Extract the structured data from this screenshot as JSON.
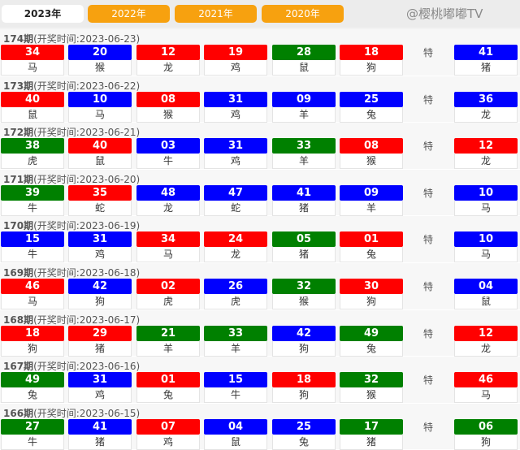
{
  "tabs": [
    "2023年",
    "2022年",
    "2021年",
    "2020年"
  ],
  "active_tab": 0,
  "special_label": "特",
  "colors": {
    "r": "#ff0000",
    "b": "#0000ff",
    "g": "#008000"
  },
  "watermark": "@樱桃嘟嘟TV",
  "draws": [
    {
      "issue": "174期",
      "time": "(开奖时间:2023-06-23)",
      "balls": [
        [
          "34",
          "r",
          "马"
        ],
        [
          "20",
          "b",
          "猴"
        ],
        [
          "12",
          "r",
          "龙"
        ],
        [
          "19",
          "r",
          "鸡"
        ],
        [
          "28",
          "g",
          "鼠"
        ],
        [
          "18",
          "r",
          "狗"
        ]
      ],
      "special": [
        "41",
        "b",
        "猪"
      ]
    },
    {
      "issue": "173期",
      "time": "(开奖时间:2023-06-22)",
      "balls": [
        [
          "40",
          "r",
          "鼠"
        ],
        [
          "10",
          "b",
          "马"
        ],
        [
          "08",
          "r",
          "猴"
        ],
        [
          "31",
          "b",
          "鸡"
        ],
        [
          "09",
          "b",
          "羊"
        ],
        [
          "25",
          "b",
          "兔"
        ]
      ],
      "special": [
        "36",
        "b",
        "龙"
      ]
    },
    {
      "issue": "172期",
      "time": "(开奖时间:2023-06-21)",
      "balls": [
        [
          "38",
          "g",
          "虎"
        ],
        [
          "40",
          "r",
          "鼠"
        ],
        [
          "03",
          "b",
          "牛"
        ],
        [
          "31",
          "b",
          "鸡"
        ],
        [
          "33",
          "g",
          "羊"
        ],
        [
          "08",
          "r",
          "猴"
        ]
      ],
      "special": [
        "12",
        "r",
        "龙"
      ]
    },
    {
      "issue": "171期",
      "time": "(开奖时间:2023-06-20)",
      "balls": [
        [
          "39",
          "g",
          "牛"
        ],
        [
          "35",
          "r",
          "蛇"
        ],
        [
          "48",
          "b",
          "龙"
        ],
        [
          "47",
          "b",
          "蛇"
        ],
        [
          "41",
          "b",
          "猪"
        ],
        [
          "09",
          "b",
          "羊"
        ]
      ],
      "special": [
        "10",
        "b",
        "马"
      ]
    },
    {
      "issue": "170期",
      "time": "(开奖时间:2023-06-19)",
      "balls": [
        [
          "15",
          "b",
          "牛"
        ],
        [
          "31",
          "b",
          "鸡"
        ],
        [
          "34",
          "r",
          "马"
        ],
        [
          "24",
          "r",
          "龙"
        ],
        [
          "05",
          "g",
          "猪"
        ],
        [
          "01",
          "r",
          "兔"
        ]
      ],
      "special": [
        "10",
        "b",
        "马"
      ]
    },
    {
      "issue": "169期",
      "time": "(开奖时间:2023-06-18)",
      "balls": [
        [
          "46",
          "r",
          "马"
        ],
        [
          "42",
          "b",
          "狗"
        ],
        [
          "02",
          "r",
          "虎"
        ],
        [
          "26",
          "b",
          "虎"
        ],
        [
          "32",
          "g",
          "猴"
        ],
        [
          "30",
          "r",
          "狗"
        ]
      ],
      "special": [
        "04",
        "b",
        "鼠"
      ]
    },
    {
      "issue": "168期",
      "time": "(开奖时间:2023-06-17)",
      "balls": [
        [
          "18",
          "r",
          "狗"
        ],
        [
          "29",
          "r",
          "猪"
        ],
        [
          "21",
          "g",
          "羊"
        ],
        [
          "33",
          "g",
          "羊"
        ],
        [
          "42",
          "b",
          "狗"
        ],
        [
          "49",
          "g",
          "兔"
        ]
      ],
      "special": [
        "12",
        "r",
        "龙"
      ]
    },
    {
      "issue": "167期",
      "time": "(开奖时间:2023-06-16)",
      "balls": [
        [
          "49",
          "g",
          "兔"
        ],
        [
          "31",
          "b",
          "鸡"
        ],
        [
          "01",
          "r",
          "兔"
        ],
        [
          "15",
          "b",
          "牛"
        ],
        [
          "18",
          "r",
          "狗"
        ],
        [
          "32",
          "g",
          "猴"
        ]
      ],
      "special": [
        "46",
        "r",
        "马"
      ]
    },
    {
      "issue": "166期",
      "time": "(开奖时间:2023-06-15)",
      "balls": [
        [
          "27",
          "g",
          "牛"
        ],
        [
          "41",
          "b",
          "猪"
        ],
        [
          "07",
          "r",
          "鸡"
        ],
        [
          "04",
          "b",
          "鼠"
        ],
        [
          "25",
          "b",
          "兔"
        ],
        [
          "17",
          "g",
          "猪"
        ]
      ],
      "special": [
        "06",
        "g",
        "狗"
      ]
    }
  ]
}
